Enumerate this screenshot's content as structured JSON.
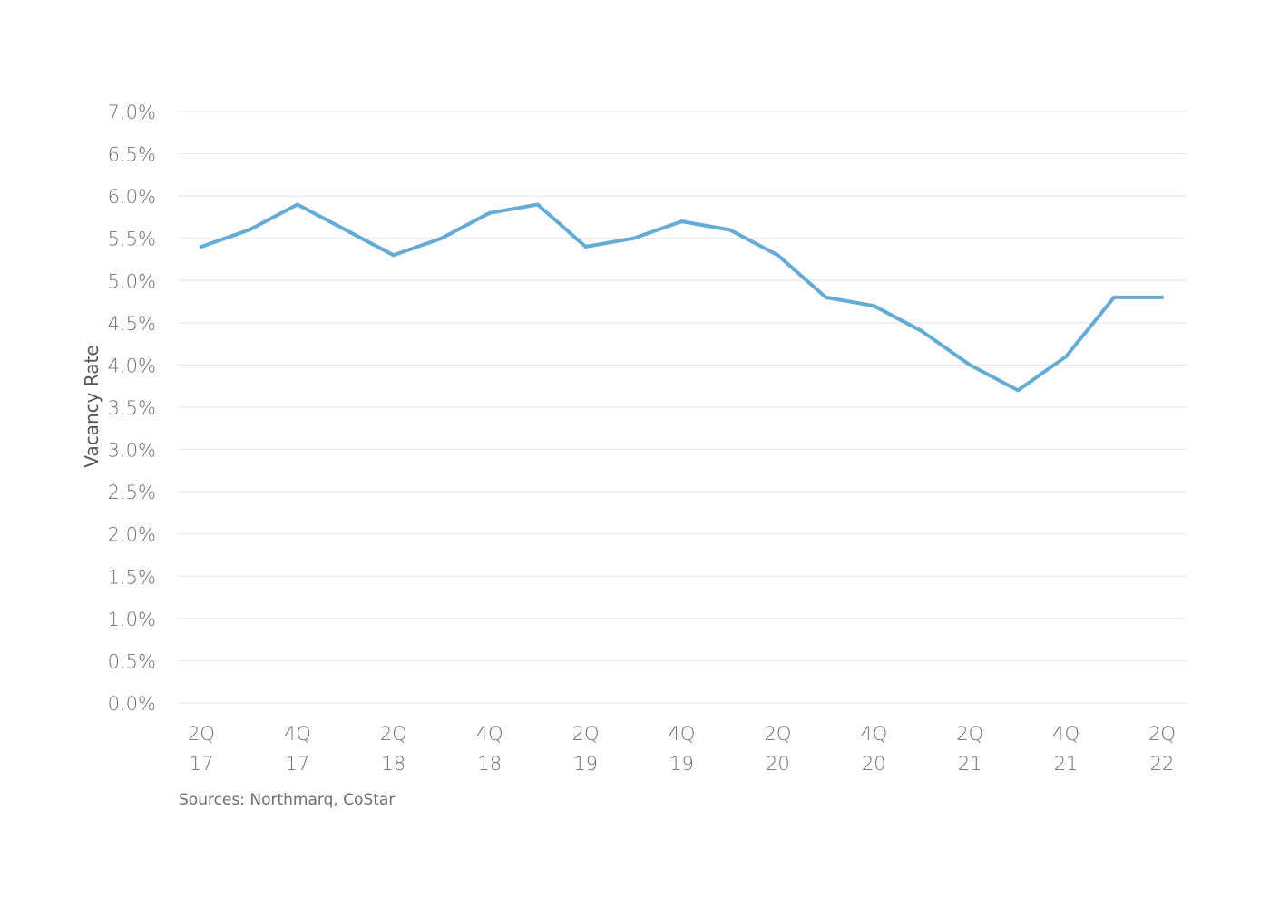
{
  "chart_data": {
    "type": "line",
    "ylabel": "Vacancy Rate",
    "ylim": [
      0,
      7.0
    ],
    "y_ticks": [
      0,
      0.5,
      1.0,
      1.5,
      2.0,
      2.5,
      3.0,
      3.5,
      4.0,
      4.5,
      5.0,
      5.5,
      6.0,
      6.5,
      7.0
    ],
    "y_tick_labels": [
      "0.0%",
      "0.5%",
      "1.0%",
      "1.5%",
      "2.0%",
      "2.5%",
      "3.0%",
      "3.5%",
      "4.0%",
      "4.5%",
      "5.0%",
      "5.5%",
      "6.0%",
      "6.5%",
      "7.0%"
    ],
    "x_tick_labels": [
      [
        "2Q",
        "17"
      ],
      [
        "4Q",
        "17"
      ],
      [
        "2Q",
        "18"
      ],
      [
        "4Q",
        "18"
      ],
      [
        "2Q",
        "19"
      ],
      [
        "4Q",
        "19"
      ],
      [
        "2Q",
        "20"
      ],
      [
        "4Q",
        "20"
      ],
      [
        "2Q",
        "21"
      ],
      [
        "4Q",
        "21"
      ],
      [
        "2Q",
        "22"
      ]
    ],
    "categories": [
      "2Q17",
      "3Q17",
      "4Q17",
      "1Q18",
      "2Q18",
      "3Q18",
      "4Q18",
      "1Q19",
      "2Q19",
      "3Q19",
      "4Q19",
      "1Q20",
      "2Q20",
      "3Q20",
      "4Q20",
      "1Q21",
      "2Q21",
      "3Q21",
      "4Q21",
      "1Q22",
      "2Q22"
    ],
    "series": [
      {
        "values": [
          5.4,
          5.6,
          5.9,
          5.6,
          5.3,
          5.5,
          5.8,
          5.9,
          5.4,
          5.5,
          5.7,
          5.6,
          5.3,
          4.8,
          4.7,
          4.4,
          4.0,
          3.7,
          4.1,
          4.8,
          4.8
        ]
      }
    ],
    "grid": true,
    "line_color": "#62acd6",
    "grid_color": "#e8e8e8"
  },
  "source_note": "Sources: Northmarq, CoStar"
}
